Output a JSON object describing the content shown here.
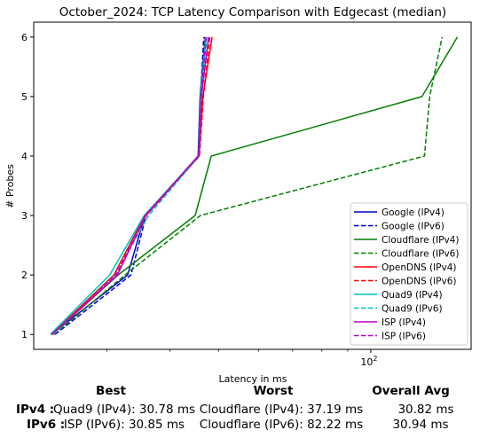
{
  "chart_data": {
    "type": "line",
    "title": "October_2024: TCP Latency Comparison with Edgecast (median)",
    "xlabel": "Latency in ms",
    "ylabel": "# Probes",
    "x_scale": "log",
    "xlim": [
      21.5,
      158
    ],
    "ylim": [
      0.75,
      6.25
    ],
    "xticks": [
      {
        "value": 100,
        "label": "10",
        "exp": "2"
      }
    ],
    "yticks": [
      1,
      2,
      3,
      4,
      5,
      6
    ],
    "legend_position": "lower right",
    "series": [
      {
        "name": "Google (IPv4)",
        "color": "#0000cc",
        "dash": false,
        "points": [
          [
            23.3,
            1
          ],
          [
            33.0,
            2
          ],
          [
            35.7,
            3
          ],
          [
            45.5,
            4
          ],
          [
            45.9,
            5
          ],
          [
            47.0,
            6
          ]
        ]
      },
      {
        "name": "Google (IPv6)",
        "color": "#0000cc",
        "dash": true,
        "points": [
          [
            23.7,
            1
          ],
          [
            33.5,
            2
          ],
          [
            35.9,
            3
          ],
          [
            45.6,
            4
          ],
          [
            46.0,
            5
          ],
          [
            46.7,
            6
          ]
        ]
      },
      {
        "name": "Cloudflare (IPv4)",
        "color": "#008000",
        "dash": false,
        "points": [
          [
            23.4,
            1
          ],
          [
            31.6,
            2
          ],
          [
            44.9,
            3
          ],
          [
            48.3,
            4
          ],
          [
            126.3,
            5
          ],
          [
            148.4,
            6
          ]
        ]
      },
      {
        "name": "Cloudflare (IPv6)",
        "color": "#008000",
        "dash": true,
        "points": [
          [
            23.6,
            1
          ],
          [
            32.6,
            2
          ],
          [
            46.0,
            3
          ],
          [
            127.7,
            4
          ],
          [
            130.8,
            5
          ],
          [
            138.4,
            6
          ]
        ]
      },
      {
        "name": "OpenDNS (IPv4)",
        "color": "#ff0000",
        "dash": false,
        "points": [
          [
            23.3,
            1
          ],
          [
            31.0,
            2
          ],
          [
            35.7,
            3
          ],
          [
            45.7,
            4
          ],
          [
            46.5,
            5
          ],
          [
            48.5,
            6
          ]
        ]
      },
      {
        "name": "OpenDNS (IPv6)",
        "color": "#ff0000",
        "dash": true,
        "points": [
          [
            23.5,
            1
          ],
          [
            31.4,
            2
          ],
          [
            35.9,
            3
          ],
          [
            45.8,
            4
          ],
          [
            46.6,
            5
          ],
          [
            48.0,
            6
          ]
        ]
      },
      {
        "name": "Quad9 (IPv4)",
        "color": "#00bfbf",
        "dash": false,
        "points": [
          [
            23.2,
            1
          ],
          [
            30.4,
            2
          ],
          [
            35.6,
            3
          ],
          [
            45.6,
            4
          ],
          [
            46.0,
            5
          ],
          [
            47.1,
            6
          ]
        ]
      },
      {
        "name": "Quad9 (IPv6)",
        "color": "#00bfbf",
        "dash": true,
        "points": [
          [
            23.5,
            1
          ],
          [
            31.2,
            2
          ],
          [
            36.3,
            3
          ],
          [
            45.7,
            4
          ],
          [
            46.2,
            5
          ],
          [
            47.3,
            6
          ]
        ]
      },
      {
        "name": "ISP (IPv4)",
        "color": "#bf00bf",
        "dash": false,
        "points": [
          [
            23.3,
            1
          ],
          [
            31.5,
            2
          ],
          [
            35.8,
            3
          ],
          [
            45.6,
            4
          ],
          [
            46.2,
            5
          ],
          [
            47.7,
            6
          ]
        ]
      },
      {
        "name": "ISP (IPv6)",
        "color": "#bf00bf",
        "dash": true,
        "points": [
          [
            23.4,
            1
          ],
          [
            31.3,
            2
          ],
          [
            35.7,
            3
          ],
          [
            45.6,
            4
          ],
          [
            46.1,
            5
          ],
          [
            47.2,
            6
          ]
        ]
      }
    ]
  },
  "summary": {
    "headers": {
      "best": "Best",
      "worst": "Worst",
      "avg": "Overall Avg"
    },
    "rows": [
      {
        "label": "IPv4 :",
        "best": "Quad9 (IPv4): 30.78 ms",
        "worst": "Cloudflare (IPv4): 37.19 ms",
        "avg": "30.82 ms"
      },
      {
        "label": "IPv6 :",
        "best": "ISP (IPv6): 30.85 ms",
        "worst": "Cloudflare (IPv6): 82.22 ms",
        "avg": "30.94 ms"
      }
    ]
  }
}
